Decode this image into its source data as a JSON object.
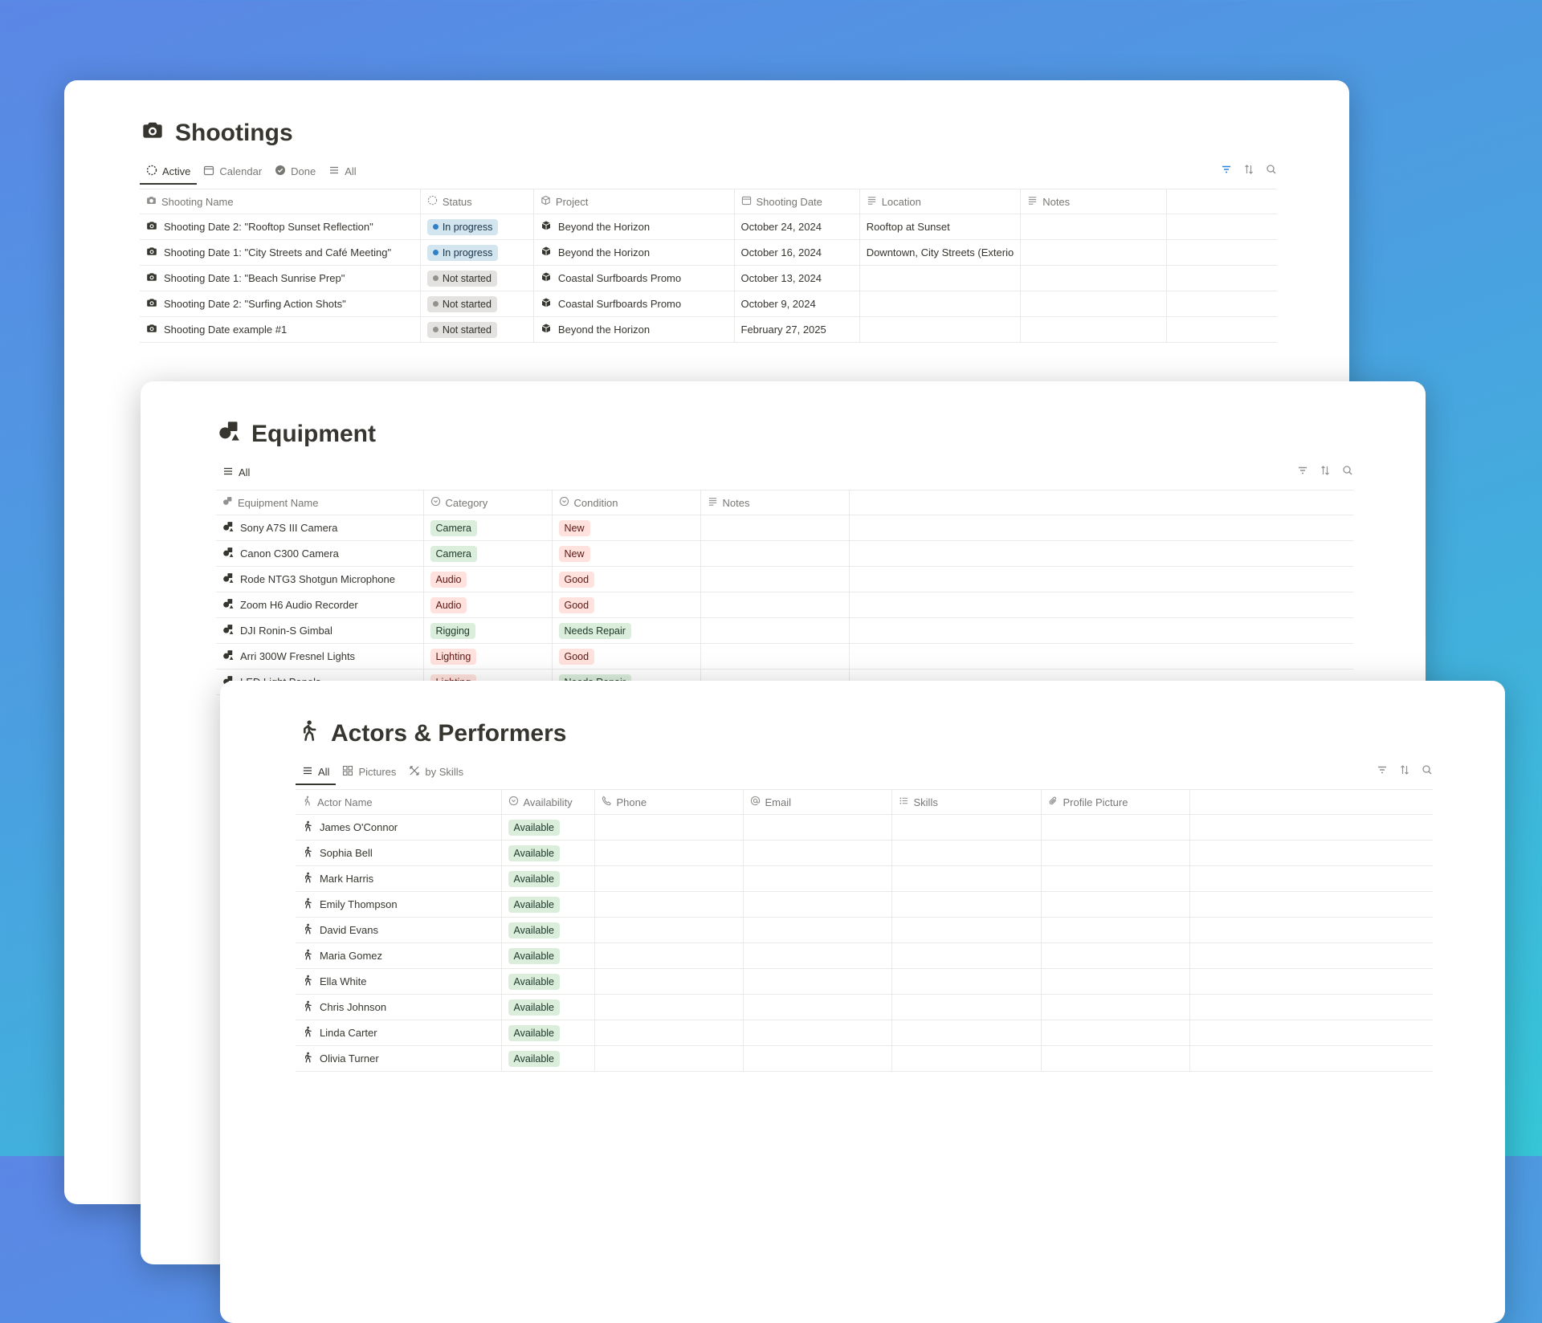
{
  "colors": {
    "accent": "#2383e2",
    "green_tag": "#dbeddb",
    "red_tag": "#ffe2dd",
    "blue_tag": "#d3e5ef",
    "gray_tag": "#e3e2e0"
  },
  "shootings": {
    "title": "Shootings",
    "tabs": [
      {
        "label": "Active",
        "icon": "loader-icon"
      },
      {
        "label": "Calendar",
        "icon": "calendar-icon"
      },
      {
        "label": "Done",
        "icon": "check-circle-icon"
      },
      {
        "label": "All",
        "icon": "list-icon"
      }
    ],
    "columns": [
      "Shooting Name",
      "Status",
      "Project",
      "Shooting Date",
      "Location",
      "Notes"
    ],
    "rows": [
      {
        "name": "Shooting Date 2: \"Rooftop Sunset Reflection\"",
        "status": "In progress",
        "project": "Beyond the Horizon",
        "date": "October 24, 2024",
        "location": "Rooftop at Sunset",
        "notes": ""
      },
      {
        "name": "Shooting Date 1: \"City Streets and Café Meeting\"",
        "status": "In progress",
        "project": "Beyond the Horizon",
        "date": "October 16, 2024",
        "location": "Downtown, City Streets (Exterio",
        "notes": ""
      },
      {
        "name": "Shooting Date 1: \"Beach Sunrise Prep\"",
        "status": "Not started",
        "project": "Coastal Surfboards Promo",
        "date": "October 13, 2024",
        "location": "",
        "notes": ""
      },
      {
        "name": "Shooting Date 2: \"Surfing Action Shots\"",
        "status": "Not started",
        "project": "Coastal Surfboards Promo",
        "date": "October 9, 2024",
        "location": "",
        "notes": ""
      },
      {
        "name": "Shooting Date example #1",
        "status": "Not started",
        "project": "Beyond the Horizon",
        "date": "February 27, 2025",
        "location": "",
        "notes": ""
      }
    ]
  },
  "equipment": {
    "title": "Equipment",
    "tabs": [
      {
        "label": "All",
        "icon": "list-icon"
      }
    ],
    "columns": [
      "Equipment Name",
      "Category",
      "Condition",
      "Notes"
    ],
    "rows": [
      {
        "name": "Sony A7S III Camera",
        "category": "Camera",
        "condition": "New"
      },
      {
        "name": "Canon C300 Camera",
        "category": "Camera",
        "condition": "New"
      },
      {
        "name": "Rode NTG3 Shotgun Microphone",
        "category": "Audio",
        "condition": "Good"
      },
      {
        "name": "Zoom H6 Audio Recorder",
        "category": "Audio",
        "condition": "Good"
      },
      {
        "name": "DJI Ronin-S Gimbal",
        "category": "Rigging",
        "condition": "Needs Repair"
      },
      {
        "name": "Arri 300W Fresnel Lights",
        "category": "Lighting",
        "condition": "Good"
      },
      {
        "name": "LED Light Panels",
        "category": "Lighting",
        "condition": "Needs Repair"
      }
    ]
  },
  "actors": {
    "title": "Actors & Performers",
    "tabs": [
      {
        "label": "All",
        "icon": "list-icon"
      },
      {
        "label": "Pictures",
        "icon": "grid-icon"
      },
      {
        "label": "by Skills",
        "icon": "skills-icon"
      }
    ],
    "columns": [
      "Actor Name",
      "Availability",
      "Phone",
      "Email",
      "Skills",
      "Profile Picture"
    ],
    "rows": [
      {
        "name": "James O'Connor",
        "availability": "Available"
      },
      {
        "name": "Sophia Bell",
        "availability": "Available"
      },
      {
        "name": "Mark Harris",
        "availability": "Available"
      },
      {
        "name": "Emily Thompson",
        "availability": "Available"
      },
      {
        "name": "David Evans",
        "availability": "Available"
      },
      {
        "name": "Maria Gomez",
        "availability": "Available"
      },
      {
        "name": "Ella White",
        "availability": "Available"
      },
      {
        "name": "Chris Johnson",
        "availability": "Available"
      },
      {
        "name": "Linda Carter",
        "availability": "Available"
      },
      {
        "name": "Olivia Turner",
        "availability": "Available"
      }
    ]
  }
}
